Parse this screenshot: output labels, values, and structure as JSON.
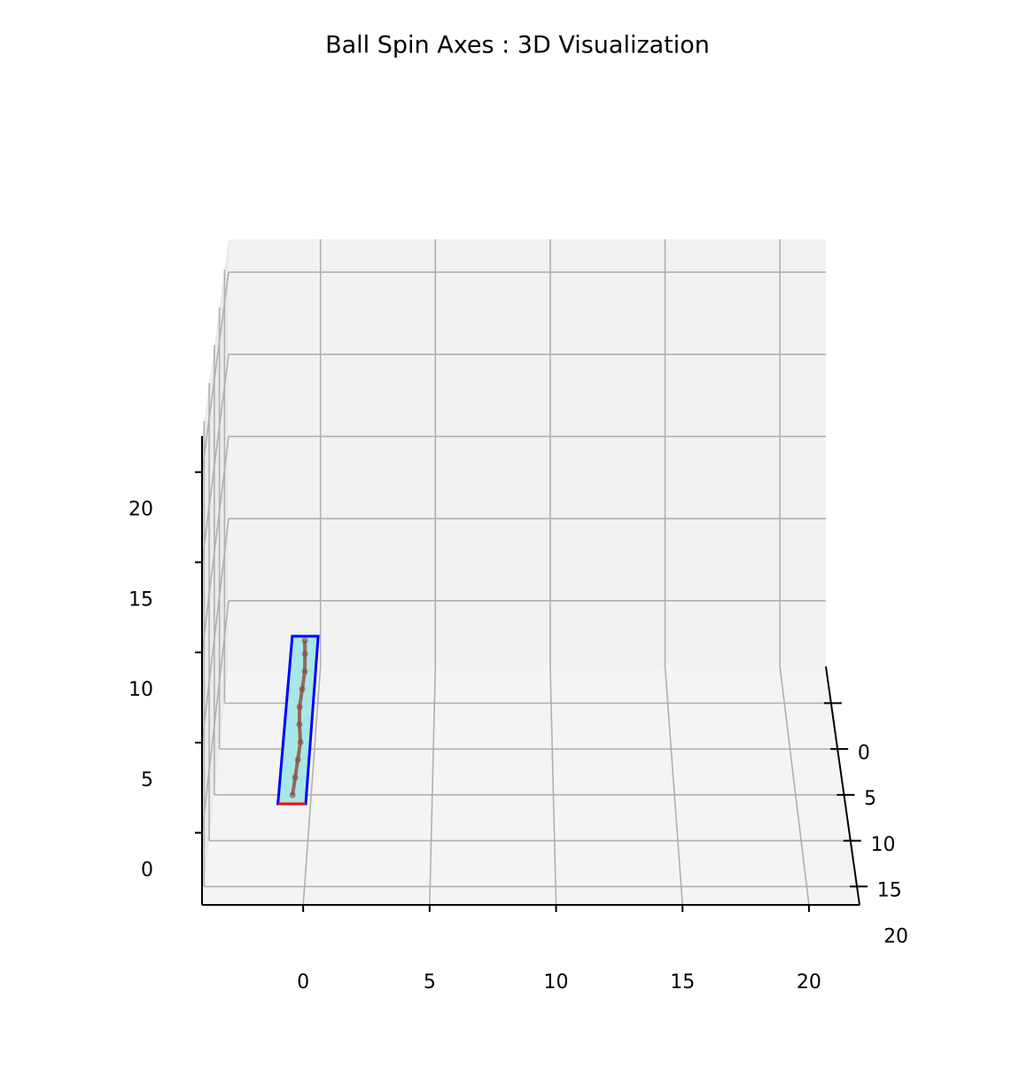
{
  "chart_data": {
    "type": "line3d",
    "title": "Ball Spin Axes : 3D Visualization",
    "xlim": [
      -4,
      22
    ],
    "ylim": [
      -4,
      22
    ],
    "zlim": [
      -4,
      22
    ],
    "xticks": [
      0,
      5,
      10,
      15,
      20
    ],
    "yticks": [
      0,
      5,
      10,
      15,
      20
    ],
    "zticks": [
      0,
      5,
      10,
      15,
      20
    ],
    "grid": true,
    "plane": {
      "x": [
        -1,
        0.1,
        0.1,
        -1
      ],
      "y": [
        22,
        22,
        3,
        3
      ],
      "z": [
        1.6,
        1.6,
        1.6,
        1.6
      ],
      "fill": "#a8e6e8",
      "edge_color": "#0000ff",
      "front_edge_color": "#ff0000"
    },
    "series": [
      {
        "color": "#8b4a3c",
        "x": [
          -0.45,
          -0.4,
          -0.35,
          -0.3,
          -0.4,
          -0.45,
          -0.4,
          -0.35,
          -0.4,
          -0.45
        ],
        "y": [
          21,
          19,
          17,
          15,
          13,
          11,
          9,
          7,
          5,
          3.5
        ],
        "z": [
          1.6,
          1.6,
          1.6,
          1.6,
          1.6,
          1.6,
          1.6,
          1.6,
          1.6,
          1.6
        ]
      }
    ]
  }
}
